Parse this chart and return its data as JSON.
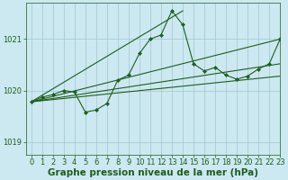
{
  "title": "Graphe pression niveau de la mer (hPa)",
  "bg_color": "#cce8f0",
  "grid_color": "#a0c8d0",
  "line_color": "#1e5e1e",
  "xlim": [
    -0.5,
    23
  ],
  "ylim": [
    1018.75,
    1021.7
  ],
  "yticks": [
    1019,
    1020,
    1021
  ],
  "xticks": [
    0,
    1,
    2,
    3,
    4,
    5,
    6,
    7,
    8,
    9,
    10,
    11,
    12,
    13,
    14,
    15,
    16,
    17,
    18,
    19,
    20,
    21,
    22,
    23
  ],
  "main_series_x": [
    0,
    1,
    2,
    3,
    4,
    5,
    6,
    7,
    8,
    9,
    10,
    11,
    12,
    13,
    14,
    15,
    16,
    17,
    18,
    19,
    20,
    21,
    22,
    23
  ],
  "main_series_y": [
    1019.78,
    1019.87,
    1019.92,
    1020.0,
    1019.97,
    1019.58,
    1019.62,
    1019.75,
    1020.2,
    1020.3,
    1020.72,
    1021.0,
    1021.08,
    1021.55,
    1021.28,
    1020.52,
    1020.38,
    1020.45,
    1020.3,
    1020.22,
    1020.28,
    1020.42,
    1020.52,
    1021.0
  ],
  "ref_line1_x": [
    0,
    23
  ],
  "ref_line1_y": [
    1019.78,
    1021.0
  ],
  "ref_line2_x": [
    0,
    23
  ],
  "ref_line2_y": [
    1019.78,
    1020.52
  ],
  "ref_line3_x": [
    0,
    23
  ],
  "ref_line3_y": [
    1019.78,
    1020.28
  ],
  "ref_line4_x": [
    0,
    14
  ],
  "ref_line4_y": [
    1019.78,
    1021.55
  ],
  "title_fontsize": 7.5,
  "tick_fontsize": 6.0
}
